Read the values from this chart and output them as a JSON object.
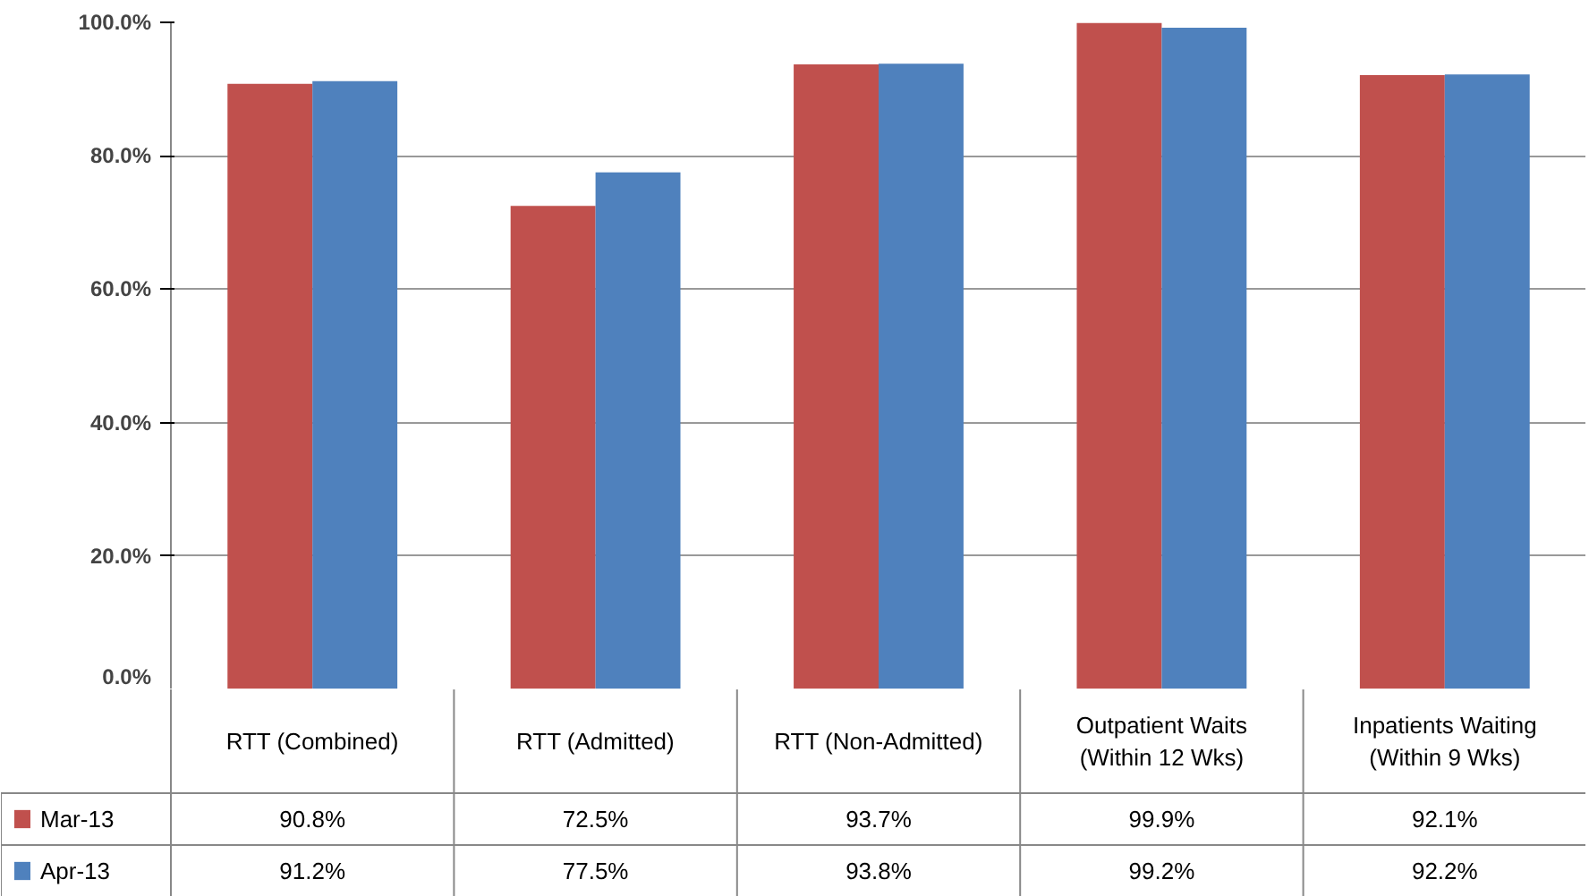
{
  "chart_data": {
    "type": "bar",
    "categories": [
      "RTT (Combined)",
      "RTT (Admitted)",
      "RTT (Non-Admitted)",
      "Outpatient Waits (Within 12 Wks)",
      "Inpatients Waiting (Within 9 Wks)"
    ],
    "series": [
      {
        "name": "Mar-13",
        "color": "#c0504d",
        "values": [
          90.8,
          72.5,
          93.7,
          99.9,
          92.1
        ]
      },
      {
        "name": "Apr-13",
        "color": "#4f81bd",
        "values": [
          91.2,
          77.5,
          93.8,
          99.2,
          92.2
        ]
      }
    ],
    "value_labels": [
      [
        "90.8%",
        "72.5%",
        "93.7%",
        "99.9%",
        "92.1%"
      ],
      [
        "91.2%",
        "77.5%",
        "93.8%",
        "99.2%",
        "92.2%"
      ]
    ],
    "ylim": [
      0,
      100
    ],
    "yticks": [
      {
        "value": 0,
        "label": "0.0%"
      },
      {
        "value": 20,
        "label": "20.0%"
      },
      {
        "value": 40,
        "label": "40.0%"
      },
      {
        "value": 60,
        "label": "60.0%"
      },
      {
        "value": 80,
        "label": "80.0%"
      },
      {
        "value": 100,
        "label": "100.0%"
      }
    ],
    "grid": "y",
    "legend": "bottom"
  }
}
